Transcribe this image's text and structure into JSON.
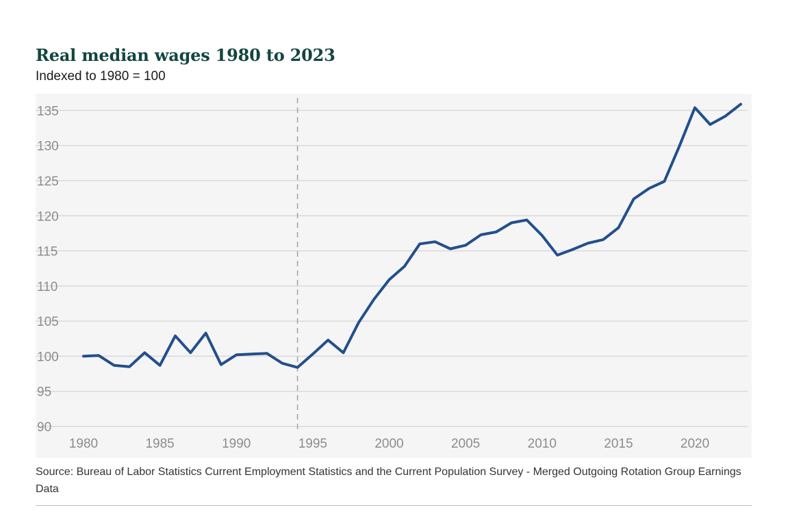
{
  "chart_data": {
    "type": "line",
    "title": "Real median wages 1980 to 2023",
    "subtitle": "Indexed to 1980 = 100",
    "source": "Source: Bureau of Labor Statistics Current Employment Statistics and the Current Population Survey - Merged Outgoing Rotation Group Earnings Data",
    "xlabel": "",
    "ylabel": "",
    "xlim": [
      1980,
      2023
    ],
    "ylim": [
      90,
      136.5
    ],
    "x_ticks": [
      1980,
      1985,
      1990,
      1995,
      2000,
      2005,
      2010,
      2015,
      2020
    ],
    "y_ticks": [
      90,
      95,
      100,
      105,
      110,
      115,
      120,
      125,
      130,
      135
    ],
    "grid": "horizontal",
    "legend": "none",
    "reference_line_x": 1994,
    "colors": {
      "line": "#234f8c",
      "plot_background": "#f5f5f5",
      "grid": "#d9d9d9",
      "reference_line": "#a6a6a6",
      "title": "#12463f"
    },
    "x": [
      1980,
      1981,
      1982,
      1983,
      1984,
      1985,
      1986,
      1987,
      1988,
      1989,
      1990,
      1991,
      1992,
      1993,
      1994,
      1995,
      1996,
      1997,
      1998,
      1999,
      2000,
      2001,
      2002,
      2003,
      2004,
      2005,
      2006,
      2007,
      2008,
      2009,
      2010,
      2011,
      2012,
      2013,
      2014,
      2015,
      2016,
      2017,
      2018,
      2019,
      2020,
      2021,
      2022,
      2023
    ],
    "series": [
      {
        "values": [
          100.0,
          100.1,
          98.7,
          98.5,
          100.5,
          98.7,
          102.9,
          100.5,
          103.3,
          98.8,
          100.2,
          100.3,
          100.4,
          99.0,
          98.4,
          100.3,
          102.3,
          100.5,
          104.8,
          108.1,
          110.9,
          112.8,
          116.0,
          116.3,
          115.3,
          115.8,
          117.3,
          117.7,
          119.0,
          119.4,
          117.2,
          114.4,
          115.2,
          116.1,
          116.6,
          118.3,
          122.4,
          123.9,
          124.9,
          130.0,
          135.4,
          133.0,
          134.2,
          135.9
        ]
      }
    ]
  }
}
